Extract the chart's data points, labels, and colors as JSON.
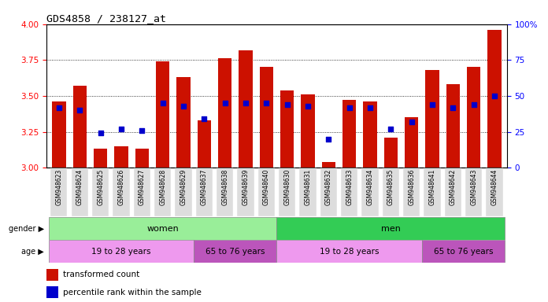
{
  "title": "GDS4858 / 238127_at",
  "samples": [
    "GSM948623",
    "GSM948624",
    "GSM948625",
    "GSM948626",
    "GSM948627",
    "GSM948628",
    "GSM948629",
    "GSM948637",
    "GSM948638",
    "GSM948639",
    "GSM948640",
    "GSM948630",
    "GSM948631",
    "GSM948632",
    "GSM948633",
    "GSM948634",
    "GSM948635",
    "GSM948636",
    "GSM948641",
    "GSM948642",
    "GSM948643",
    "GSM948644"
  ],
  "red_values": [
    3.46,
    3.57,
    3.13,
    3.15,
    3.13,
    3.74,
    3.63,
    3.33,
    3.76,
    3.82,
    3.7,
    3.54,
    3.51,
    3.04,
    3.47,
    3.46,
    3.21,
    3.35,
    3.68,
    3.58,
    3.7,
    3.96
  ],
  "blue_values": [
    42,
    40,
    24,
    27,
    26,
    45,
    43,
    34,
    45,
    45,
    45,
    44,
    43,
    20,
    42,
    42,
    27,
    32,
    44,
    42,
    44,
    50
  ],
  "ylim_left": [
    3.0,
    4.0
  ],
  "ylim_right": [
    0,
    100
  ],
  "yticks_left": [
    3.0,
    3.25,
    3.5,
    3.75,
    4.0
  ],
  "yticks_right": [
    0,
    25,
    50,
    75,
    100
  ],
  "bar_color": "#cc1100",
  "dot_color": "#0000cc",
  "gender_groups": [
    {
      "label": "women",
      "start": 0,
      "end": 10,
      "color": "#99ee99"
    },
    {
      "label": "men",
      "start": 11,
      "end": 21,
      "color": "#33cc55"
    }
  ],
  "age_groups": [
    {
      "label": "19 to 28 years",
      "start": 0,
      "end": 6,
      "color": "#ee99ee"
    },
    {
      "label": "65 to 76 years",
      "start": 7,
      "end": 10,
      "color": "#bb55bb"
    },
    {
      "label": "19 to 28 years",
      "start": 11,
      "end": 17,
      "color": "#ee99ee"
    },
    {
      "label": "65 to 76 years",
      "start": 18,
      "end": 21,
      "color": "#bb55bb"
    }
  ],
  "legend_red": "transformed count",
  "legend_blue": "percentile rank within the sample",
  "gender_label": "gender",
  "age_label": "age",
  "xtick_bg": "#dddddd"
}
